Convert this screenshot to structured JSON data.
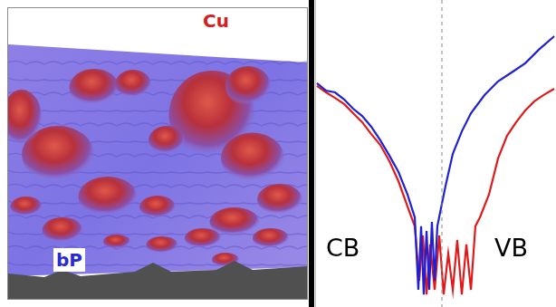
{
  "left_panel": {
    "labels": [
      "Cu",
      "bP"
    ]
  },
  "chart_data": {
    "type": "line",
    "xlim": [
      -1,
      0.9
    ],
    "ylim": [
      0,
      1
    ],
    "tick_labels": false,
    "grid": false,
    "reference_line": {
      "x": 0,
      "line_style": "dashed"
    },
    "annotations": [
      "CB",
      "VB"
    ],
    "series": [
      {
        "color": "#1f1fd6",
        "x": [
          -0.986,
          -0.914,
          -0.843,
          -0.771,
          -0.7,
          -0.629,
          -0.557,
          -0.486,
          -0.414,
          -0.343,
          -0.271,
          -0.214,
          -0.186,
          -0.164,
          -0.143,
          -0.121,
          -0.1,
          -0.079,
          -0.057,
          -0.036,
          -0.007,
          0.029,
          0.086,
          0.157,
          0.229,
          0.336,
          0.443,
          0.55,
          0.657,
          0.764,
          0.886
        ],
        "values": [
          0.729,
          0.705,
          0.699,
          0.676,
          0.646,
          0.622,
          0.587,
          0.543,
          0.493,
          0.44,
          0.366,
          0.292,
          0.056,
          0.263,
          0.041,
          0.248,
          0.056,
          0.277,
          0.086,
          0.263,
          0.322,
          0.395,
          0.499,
          0.572,
          0.631,
          0.69,
          0.735,
          0.764,
          0.794,
          0.838,
          0.882
        ]
      },
      {
        "color": "#e01a1a",
        "x": [
          -0.986,
          -0.914,
          -0.843,
          -0.771,
          -0.7,
          -0.629,
          -0.557,
          -0.486,
          -0.414,
          -0.343,
          -0.271,
          -0.214,
          -0.179,
          -0.15,
          -0.121,
          -0.093,
          -0.057,
          -0.021,
          0.014,
          0.05,
          0.086,
          0.121,
          0.157,
          0.193,
          0.229,
          0.264,
          0.3,
          0.371,
          0.443,
          0.514,
          0.586,
          0.657,
          0.729,
          0.8,
          0.886
        ],
        "values": [
          0.72,
          0.699,
          0.681,
          0.661,
          0.631,
          0.602,
          0.563,
          0.528,
          0.475,
          0.41,
          0.327,
          0.263,
          0.086,
          0.233,
          0.041,
          0.204,
          0.056,
          0.233,
          0.041,
          0.174,
          0.056,
          0.218,
          0.041,
          0.204,
          0.056,
          0.263,
          0.292,
          0.366,
          0.484,
          0.558,
          0.602,
          0.64,
          0.67,
          0.69,
          0.711
        ]
      }
    ]
  }
}
